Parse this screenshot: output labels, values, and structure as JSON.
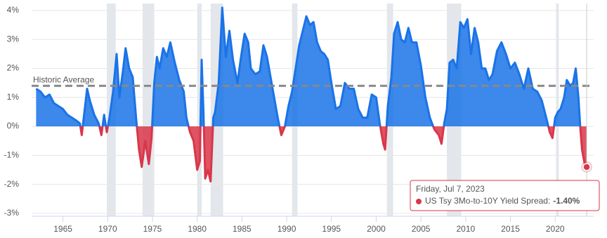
{
  "chart_data": {
    "type": "area",
    "xlim": [
      1961.5,
      2024.3
    ],
    "ylim": [
      -3.1,
      4.12
    ],
    "xticks": [
      1965,
      1970,
      1975,
      1980,
      1985,
      1990,
      1995,
      2000,
      2005,
      2010,
      2015,
      2020
    ],
    "yticks": [
      {
        "value": -3,
        "label": "-3%"
      },
      {
        "value": -2,
        "label": "-2%"
      },
      {
        "value": -1,
        "label": "-1%"
      },
      {
        "value": 0,
        "label": "0%"
      },
      {
        "value": 1,
        "label": "1%"
      },
      {
        "value": 2,
        "label": "2%"
      },
      {
        "value": 3,
        "label": "3%"
      },
      {
        "value": 4,
        "label": "4%"
      }
    ],
    "grid": true,
    "series": [
      {
        "color": "#1a73e8",
        "negative_color": "#d9364a",
        "x": [
          1962.0,
          1962.5,
          1963.0,
          1963.5,
          1964.0,
          1964.5,
          1965.0,
          1965.5,
          1966.0,
          1966.5,
          1966.9,
          1967.1,
          1967.4,
          1967.7,
          1968.0,
          1968.5,
          1969.0,
          1969.3,
          1969.6,
          1969.9,
          1970.2,
          1970.6,
          1971.0,
          1971.3,
          1971.7,
          1972.0,
          1972.4,
          1972.8,
          1973.2,
          1973.5,
          1973.8,
          1974.2,
          1974.6,
          1974.9,
          1975.2,
          1975.5,
          1975.8,
          1976.2,
          1976.6,
          1977.0,
          1977.5,
          1978.0,
          1978.5,
          1978.8,
          1979.2,
          1979.6,
          1980.0,
          1980.3,
          1980.5,
          1980.7,
          1980.9,
          1981.2,
          1981.5,
          1981.8,
          1982.0,
          1982.4,
          1982.8,
          1983.2,
          1983.6,
          1984.0,
          1984.5,
          1984.9,
          1985.3,
          1985.7,
          1986.0,
          1986.5,
          1987.0,
          1987.4,
          1987.8,
          1988.2,
          1988.6,
          1989.0,
          1989.4,
          1989.8,
          1990.2,
          1990.6,
          1991.0,
          1991.4,
          1991.8,
          1992.2,
          1992.6,
          1993.0,
          1993.4,
          1993.8,
          1994.2,
          1994.6,
          1995.0,
          1995.5,
          1996.0,
          1996.5,
          1997.0,
          1997.5,
          1998.0,
          1998.5,
          1999.0,
          1999.5,
          2000.0,
          2000.4,
          2000.8,
          2001.0,
          2001.3,
          2001.7,
          2002.0,
          2002.4,
          2002.8,
          2003.2,
          2003.6,
          2004.0,
          2004.5,
          2005.0,
          2005.5,
          2006.0,
          2006.5,
          2007.0,
          2007.3,
          2007.6,
          2007.9,
          2008.2,
          2008.6,
          2009.0,
          2009.4,
          2009.8,
          2010.2,
          2010.6,
          2011.0,
          2011.4,
          2011.8,
          2012.2,
          2012.6,
          2013.0,
          2013.5,
          2014.0,
          2014.5,
          2015.0,
          2015.5,
          2016.0,
          2016.5,
          2017.0,
          2017.5,
          2018.0,
          2018.5,
          2019.0,
          2019.4,
          2019.7,
          2020.0,
          2020.3,
          2020.6,
          2021.0,
          2021.3,
          2021.7,
          2022.0,
          2022.3,
          2022.6,
          2022.8,
          2023.0,
          2023.3,
          2023.52
        ],
        "values": [
          1.3,
          1.2,
          1.0,
          1.1,
          0.8,
          0.7,
          0.6,
          0.4,
          0.3,
          0.2,
          0.1,
          -0.3,
          0.5,
          1.3,
          0.9,
          0.4,
          0.1,
          -0.3,
          0.4,
          -0.2,
          0.3,
          1.2,
          2.5,
          1.0,
          1.9,
          2.7,
          2.0,
          1.7,
          0.2,
          -0.8,
          -1.4,
          -0.5,
          -1.3,
          -0.4,
          1.5,
          2.4,
          2.0,
          2.7,
          2.4,
          2.9,
          2.2,
          1.6,
          1.2,
          0.3,
          -0.2,
          -0.5,
          -1.5,
          -1.2,
          2.3,
          0.5,
          -1.8,
          -1.5,
          -1.9,
          0.3,
          0.5,
          1.5,
          4.1,
          2.4,
          3.3,
          2.3,
          1.5,
          2.4,
          3.2,
          2.9,
          2.0,
          1.8,
          1.9,
          2.8,
          2.4,
          1.7,
          1.0,
          0.3,
          -0.3,
          0.0,
          0.7,
          1.2,
          2.0,
          2.8,
          3.3,
          3.8,
          3.5,
          3.6,
          2.9,
          2.6,
          2.5,
          2.3,
          1.5,
          0.6,
          0.7,
          1.5,
          1.3,
          1.3,
          0.6,
          0.3,
          0.3,
          1.1,
          1.0,
          0.1,
          -0.6,
          -0.8,
          0.7,
          1.7,
          3.2,
          3.6,
          3.0,
          2.9,
          3.4,
          2.9,
          2.9,
          2.1,
          1.0,
          0.3,
          -0.1,
          -0.3,
          -0.6,
          0.1,
          0.6,
          2.2,
          2.3,
          2.0,
          3.6,
          3.4,
          3.7,
          2.5,
          3.4,
          2.9,
          2.0,
          2.0,
          1.6,
          1.8,
          2.6,
          2.9,
          2.5,
          2.0,
          2.2,
          1.8,
          1.3,
          2.0,
          1.3,
          1.2,
          0.9,
          0.3,
          -0.2,
          -0.4,
          0.3,
          0.5,
          0.6,
          1.0,
          1.6,
          1.4,
          1.5,
          2.0,
          1.0,
          0.0,
          -0.8,
          -1.3,
          -1.4
        ]
      }
    ],
    "recessions": [
      [
        1969.9,
        1970.9
      ],
      [
        1973.9,
        1975.2
      ],
      [
        1980.0,
        1980.5
      ],
      [
        1981.5,
        1982.9
      ],
      [
        1990.6,
        1991.2
      ],
      [
        2001.2,
        2001.9
      ],
      [
        2007.9,
        2009.5
      ],
      [
        2020.1,
        2020.4
      ]
    ],
    "average": {
      "label": "Historic Average",
      "value": 1.4
    },
    "tooltip": {
      "title": "Friday, Jul 7, 2023",
      "label": "US Tsy 3Mo-to-10Y Yield Spread:",
      "values": [
        -1.4
      ],
      "value_labels": [
        "-1.40%"
      ]
    }
  }
}
